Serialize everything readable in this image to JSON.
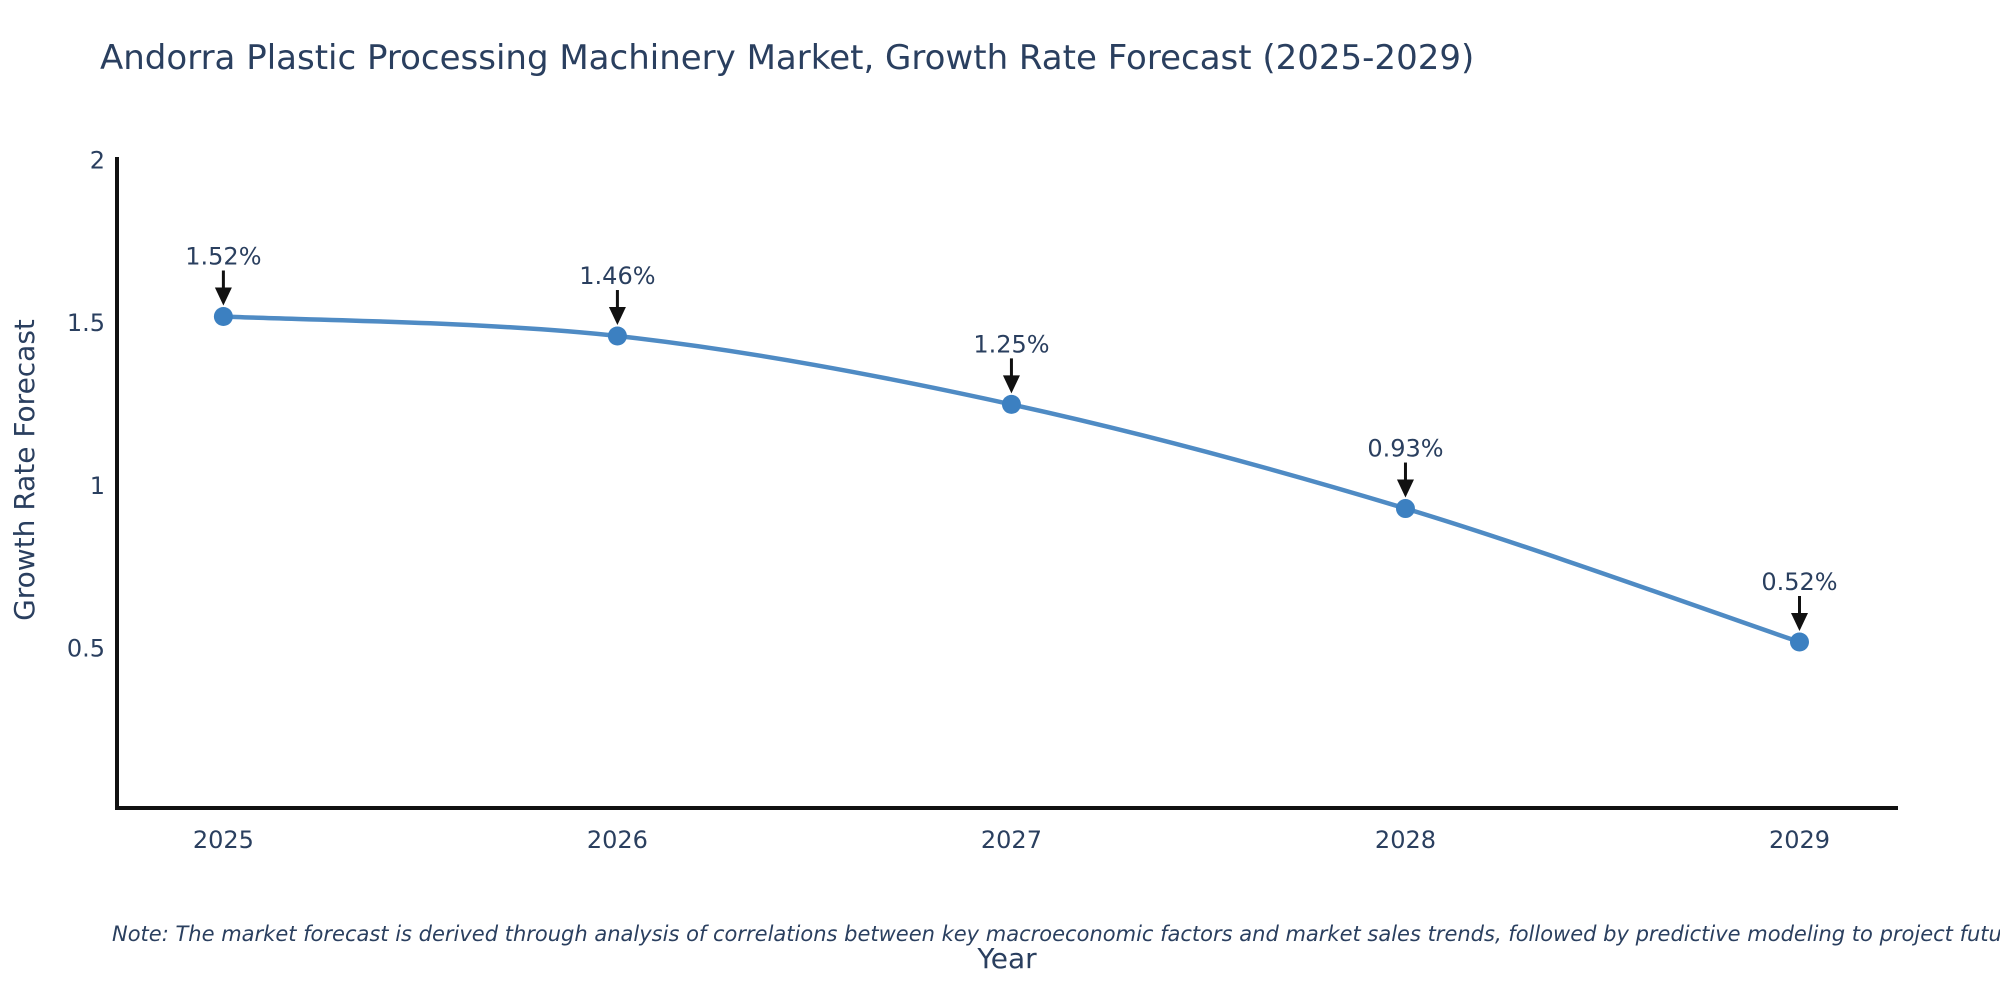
{
  "page": {
    "background": "#ffffff"
  },
  "title": {
    "text": "Andorra Plastic Processing Machinery Market, Growth Rate Forecast (2025-2029)",
    "color": "#2a3f5f"
  },
  "note": {
    "text": "Note: The market forecast is derived through analysis of correlations between key macroeconomic factors and market sales trends, followed by predictive modeling to project future sales."
  },
  "chart_data": {
    "type": "line",
    "title": "Andorra Plastic Processing Machinery Market, Growth Rate Forecast (2025-2029)",
    "x": [
      2025,
      2026,
      2027,
      2028,
      2029
    ],
    "xtick_labels": [
      "2025",
      "2026",
      "2027",
      "2028",
      "2029"
    ],
    "series": [
      {
        "name": "Growth Rate Forecast",
        "values": [
          1.52,
          1.46,
          1.25,
          0.93,
          0.52
        ]
      }
    ],
    "point_labels": [
      "1.52%",
      "1.46%",
      "1.25%",
      "0.93%",
      "0.52%"
    ],
    "xlabel": "Year",
    "ylabel": "Growth Rate Forecast",
    "yticks": [
      0.5,
      1,
      1.5,
      2
    ],
    "ytick_labels": [
      "0.5",
      "1",
      "1.5",
      "2"
    ],
    "xlim": [
      2024.73,
      2029.25
    ],
    "ylim": [
      0.01,
      2.01
    ],
    "grid": false,
    "legend": "none",
    "line_shape": "spline",
    "annotations": "value labels with downward arrows above each point",
    "colors": {
      "line": "#4f8bc4",
      "marker": "#3c80c1",
      "axis": "#111111",
      "text": "#2a3f5f",
      "annotation_arrow": "#111111"
    }
  }
}
